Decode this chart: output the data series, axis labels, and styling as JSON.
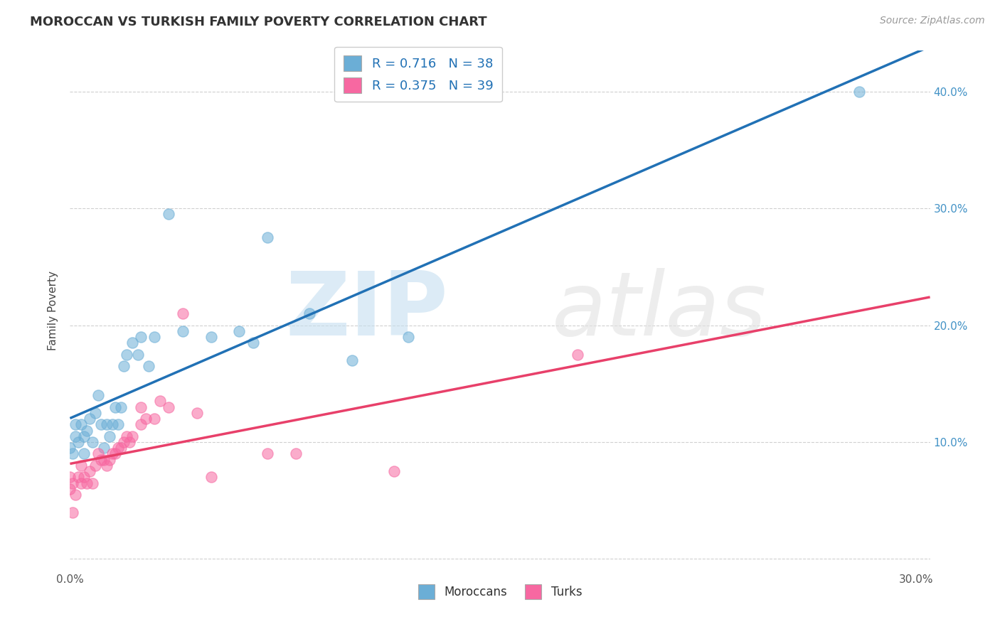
{
  "title": "MOROCCAN VS TURKISH FAMILY POVERTY CORRELATION CHART",
  "source": "Source: ZipAtlas.com",
  "ylabel": "Family Poverty",
  "xlim": [
    0.0,
    0.305
  ],
  "ylim": [
    -0.01,
    0.435
  ],
  "x_ticks": [
    0.0,
    0.05,
    0.1,
    0.15,
    0.2,
    0.25,
    0.3
  ],
  "x_tick_labels": [
    "0.0%",
    "",
    "",
    "",
    "",
    "",
    "30.0%"
  ],
  "y_ticks": [
    0.0,
    0.1,
    0.2,
    0.3,
    0.4
  ],
  "y_tick_labels": [
    "",
    "10.0%",
    "20.0%",
    "30.0%",
    "40.0%"
  ],
  "moroccan_R": 0.716,
  "moroccan_N": 38,
  "turkish_R": 0.375,
  "turkish_N": 39,
  "moroccan_color": "#6baed6",
  "turkish_color": "#f768a1",
  "moroccan_line_color": "#2171b5",
  "turkish_line_color": "#e8406a",
  "moroccan_x": [
    0.0,
    0.001,
    0.002,
    0.002,
    0.003,
    0.004,
    0.005,
    0.005,
    0.006,
    0.007,
    0.008,
    0.009,
    0.01,
    0.011,
    0.012,
    0.013,
    0.014,
    0.015,
    0.016,
    0.017,
    0.018,
    0.019,
    0.02,
    0.022,
    0.024,
    0.025,
    0.028,
    0.03,
    0.035,
    0.04,
    0.05,
    0.06,
    0.065,
    0.07,
    0.085,
    0.1,
    0.12,
    0.28
  ],
  "moroccan_y": [
    0.095,
    0.09,
    0.105,
    0.115,
    0.1,
    0.115,
    0.09,
    0.105,
    0.11,
    0.12,
    0.1,
    0.125,
    0.14,
    0.115,
    0.095,
    0.115,
    0.105,
    0.115,
    0.13,
    0.115,
    0.13,
    0.165,
    0.175,
    0.185,
    0.175,
    0.19,
    0.165,
    0.19,
    0.295,
    0.195,
    0.19,
    0.195,
    0.185,
    0.275,
    0.21,
    0.17,
    0.19,
    0.4
  ],
  "turkish_x": [
    0.0,
    0.0,
    0.001,
    0.001,
    0.002,
    0.003,
    0.004,
    0.004,
    0.005,
    0.006,
    0.007,
    0.008,
    0.009,
    0.01,
    0.011,
    0.012,
    0.013,
    0.014,
    0.015,
    0.016,
    0.017,
    0.018,
    0.019,
    0.02,
    0.021,
    0.022,
    0.025,
    0.025,
    0.027,
    0.03,
    0.032,
    0.035,
    0.04,
    0.045,
    0.05,
    0.07,
    0.08,
    0.115,
    0.18
  ],
  "turkish_y": [
    0.06,
    0.07,
    0.04,
    0.065,
    0.055,
    0.07,
    0.065,
    0.08,
    0.07,
    0.065,
    0.075,
    0.065,
    0.08,
    0.09,
    0.085,
    0.085,
    0.08,
    0.085,
    0.09,
    0.09,
    0.095,
    0.095,
    0.1,
    0.105,
    0.1,
    0.105,
    0.115,
    0.13,
    0.12,
    0.12,
    0.135,
    0.13,
    0.21,
    0.125,
    0.07,
    0.09,
    0.09,
    0.075,
    0.175
  ]
}
